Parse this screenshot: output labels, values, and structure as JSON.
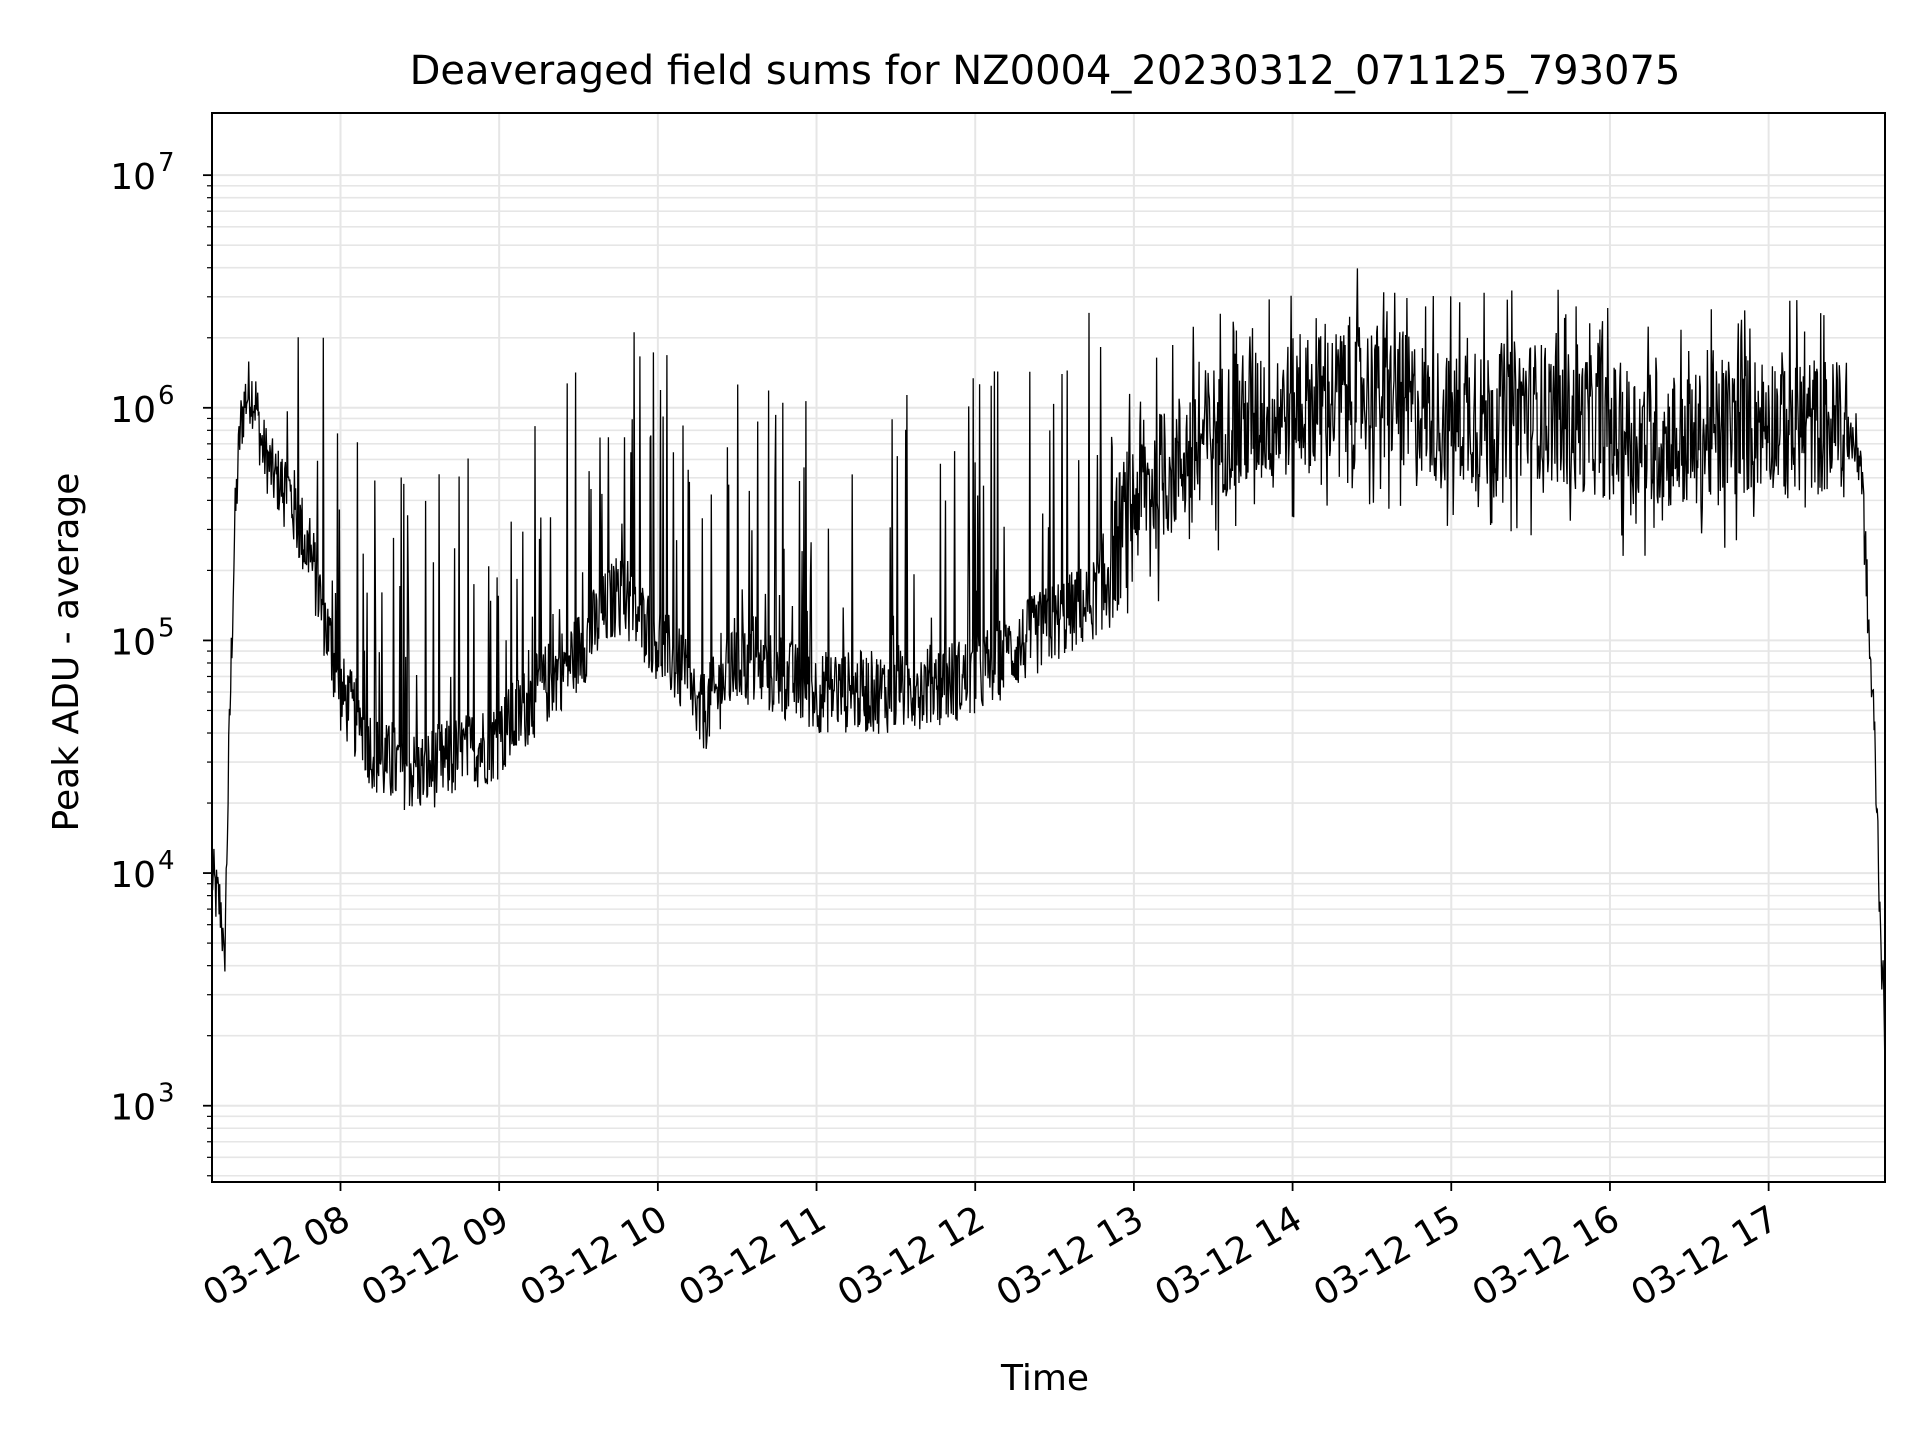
{
  "chart_data": {
    "type": "line",
    "title": "Deaveraged field sums for NZ0004_20230312_071125_793075",
    "xlabel": "Time",
    "ylabel": "Peak ADU - average",
    "y_scale": "log",
    "ylim": [
      470,
      18500000
    ],
    "xlim": [
      "2023-03-12 07:11:25",
      "2023-03-12 17:44:00"
    ],
    "x_ticks": [
      {
        "value": "2023-03-12 08:00",
        "label": "03-12 08"
      },
      {
        "value": "2023-03-12 09:00",
        "label": "03-12 09"
      },
      {
        "value": "2023-03-12 10:00",
        "label": "03-12 10"
      },
      {
        "value": "2023-03-12 11:00",
        "label": "03-12 11"
      },
      {
        "value": "2023-03-12 12:00",
        "label": "03-12 12"
      },
      {
        "value": "2023-03-12 13:00",
        "label": "03-12 13"
      },
      {
        "value": "2023-03-12 14:00",
        "label": "03-12 14"
      },
      {
        "value": "2023-03-12 15:00",
        "label": "03-12 15"
      },
      {
        "value": "2023-03-12 16:00",
        "label": "03-12 16"
      },
      {
        "value": "2023-03-12 17:00",
        "label": "03-12 17"
      }
    ],
    "y_ticks": [
      {
        "value": 1000,
        "base": "10",
        "exp": "3"
      },
      {
        "value": 10000,
        "base": "10",
        "exp": "4"
      },
      {
        "value": 100000,
        "base": "10",
        "exp": "5"
      },
      {
        "value": 1000000,
        "base": "10",
        "exp": "6"
      },
      {
        "value": 10000000,
        "base": "10",
        "exp": "7"
      }
    ],
    "grid": true,
    "line_color": "#000000",
    "grid_color": "#e6e6e6",
    "series": [
      {
        "x": [
          "2023-03-12 07:11:25",
          "2023-03-12 07:13",
          "2023-03-12 07:15",
          "2023-03-12 07:16",
          "2023-03-12 07:18",
          "2023-03-12 07:20",
          "2023-03-12 07:22",
          "2023-03-12 07:24",
          "2023-03-12 07:26",
          "2023-03-12 07:28",
          "2023-03-12 07:30",
          "2023-03-12 07:35",
          "2023-03-12 07:40",
          "2023-03-12 07:45",
          "2023-03-12 07:50",
          "2023-03-12 08:00",
          "2023-03-12 08:15",
          "2023-03-12 08:30",
          "2023-03-12 08:45",
          "2023-03-12 09:00",
          "2023-03-12 09:15",
          "2023-03-12 09:30",
          "2023-03-12 09:45",
          "2023-03-12 10:00",
          "2023-03-12 10:10",
          "2023-03-12 10:15",
          "2023-03-12 10:30",
          "2023-03-12 10:45",
          "2023-03-12 11:00",
          "2023-03-12 11:30",
          "2023-03-12 12:00",
          "2023-03-12 12:30",
          "2023-03-12 12:45",
          "2023-03-12 13:00",
          "2023-03-12 13:30",
          "2023-03-12 14:00",
          "2023-03-12 14:30",
          "2023-03-12 15:00",
          "2023-03-12 15:30",
          "2023-03-12 16:00",
          "2023-03-12 16:30",
          "2023-03-12 17:00",
          "2023-03-12 17:30",
          "2023-03-12 17:35",
          "2023-03-12 17:38",
          "2023-03-12 17:40",
          "2023-03-12 17:42",
          "2023-03-12 17:44"
        ],
        "y": [
          10000,
          8000,
          7000,
          3500,
          40000,
          300000,
          800000,
          1100000,
          1200000,
          1050000,
          700000,
          500000,
          450000,
          300000,
          200000,
          60000,
          30000,
          27000,
          32000,
          38000,
          60000,
          90000,
          160000,
          100000,
          70000,
          45000,
          80000,
          70000,
          60000,
          60000,
          70000,
          120000,
          150000,
          400000,
          800000,
          1000000,
          1200000,
          900000,
          1000000,
          800000,
          700000,
          900000,
          800000,
          600000,
          100000,
          40000,
          8000,
          1700
        ]
      }
    ]
  }
}
